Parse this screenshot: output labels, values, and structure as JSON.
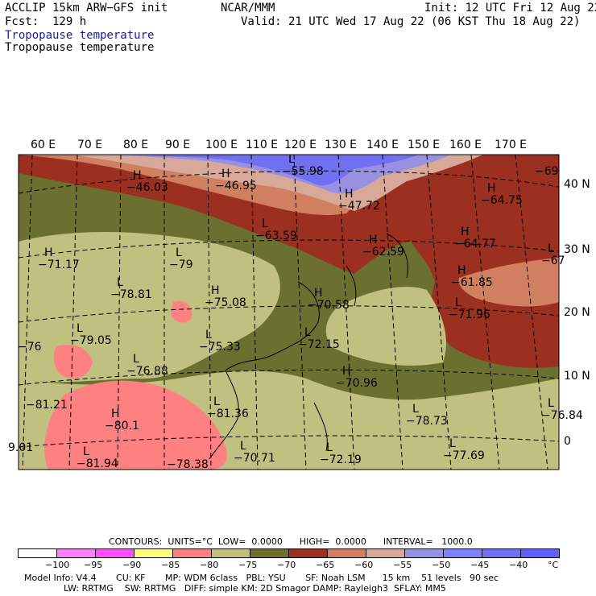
{
  "header": {
    "model": "ACCLIP 15km ARW−GFS init",
    "center": "NCAR/MMM",
    "init": "Init: 12 UTC Fri 12 Aug 22",
    "fcst": "Fcst:  129 h",
    "valid": "Valid: 21 UTC Wed 17 Aug 22 (06 KST Thu 18 Aug 22)",
    "field_blue": "Tropopause temperature",
    "field_black": "Tropopause temperature"
  },
  "lon_labels": [
    "60 E",
    "70 E",
    "80 E",
    "90 E",
    "100 E",
    "110 E",
    "120 E",
    "130 E",
    "140 E",
    "150 E",
    "160 E",
    "170 E"
  ],
  "lat_labels": [
    "40 N",
    "30 N",
    "20 N",
    "10 N",
    "0"
  ],
  "highs_lows": [
    {
      "mark": "H",
      "value": "−46.03"
    },
    {
      "mark": "H",
      "value": "−46.95"
    },
    {
      "mark": "L",
      "value": "−55.98"
    },
    {
      "mark": "H",
      "value": "−47.72"
    },
    {
      "mark": "H",
      "value": "−64.75"
    },
    {
      "mark": "",
      "value": "−69"
    },
    {
      "mark": "L",
      "value": "−63.59"
    },
    {
      "mark": "H",
      "value": "−71.17"
    },
    {
      "mark": "L",
      "value": "−79"
    },
    {
      "mark": "H",
      "value": "−62.59"
    },
    {
      "mark": "H",
      "value": "−64.77"
    },
    {
      "mark": "L",
      "value": "−67"
    },
    {
      "mark": "L",
      "value": "−78.81"
    },
    {
      "mark": "H",
      "value": "−75.08"
    },
    {
      "mark": "H",
      "value": "−70.58"
    },
    {
      "mark": "H",
      "value": "−61.85"
    },
    {
      "mark": "L",
      "value": "−71.96"
    },
    {
      "mark": "L",
      "value": "−79.05"
    },
    {
      "mark": "",
      "value": "−76"
    },
    {
      "mark": "L",
      "value": "−75.33"
    },
    {
      "mark": "L",
      "value": "−72.15"
    },
    {
      "mark": "L",
      "value": "−76.88"
    },
    {
      "mark": "H",
      "value": "−70.96"
    },
    {
      "mark": "",
      "value": "−81.21"
    },
    {
      "mark": "H",
      "value": "−80.1"
    },
    {
      "mark": "L",
      "value": "−81.36"
    },
    {
      "mark": "L",
      "value": "−78.73"
    },
    {
      "mark": "L",
      "value": "−76.84"
    },
    {
      "mark": "",
      "value": "9.01"
    },
    {
      "mark": "L",
      "value": "−81.94"
    },
    {
      "mark": "",
      "value": "−78.38"
    },
    {
      "mark": "L",
      "value": "−70.71"
    },
    {
      "mark": "L",
      "value": "−72.19"
    },
    {
      "mark": "L",
      "value": "−77.69"
    }
  ],
  "contour_info": {
    "contours": "CONTOURS:  UNITS=°C  LOW=  0.0000      HIGH=  0.0000      INTERVAL=   1000.0"
  },
  "colorbar": {
    "colors": [
      "#ffffff",
      "#ff80ff",
      "#ff50ff",
      "#ffff80",
      "#ff8080",
      "#c0c080",
      "#6b7030",
      "#9c3020",
      "#d08060",
      "#d8a898",
      "#9890e0",
      "#8080ff",
      "#7070f0",
      "#6060ff"
    ],
    "ticks": [
      "−100",
      "−95",
      "−90",
      "−85",
      "−80",
      "−75",
      "−70",
      "−65",
      "−60",
      "−55",
      "−50",
      "−45",
      "−40",
      "°C"
    ]
  },
  "footer": {
    "line1": "Model Info: V4.4       CU: KF       MP: WDM 6class   PBL: YSU       SF: Noah LSM      15 km    51 levels   90 sec",
    "line2": "              LW: RRTMG    SW: RRTMG   DIFF: simple KM: 2D Smagor DAMP: Rayleigh3  SFLAY: MM5"
  }
}
